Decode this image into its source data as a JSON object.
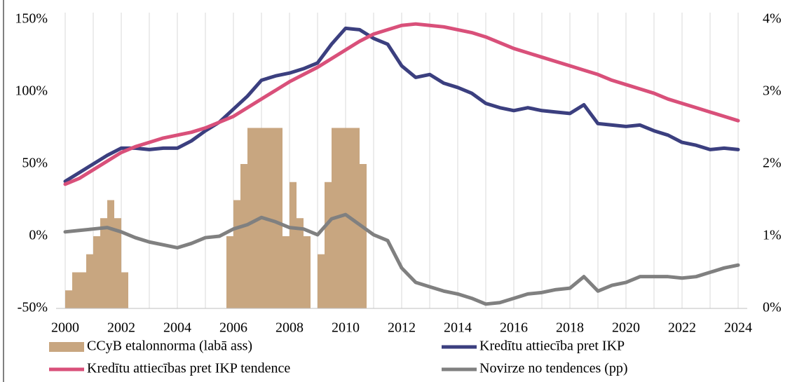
{
  "chart_data": {
    "type": "combo",
    "x": [
      2000,
      2000.5,
      2001,
      2001.5,
      2002,
      2002.5,
      2003,
      2003.5,
      2004,
      2004.5,
      2005,
      2005.5,
      2006,
      2006.5,
      2007,
      2007.5,
      2008,
      2008.5,
      2009,
      2009.5,
      2010,
      2010.5,
      2011,
      2011.5,
      2012,
      2012.5,
      2013,
      2013.5,
      2014,
      2014.5,
      2015,
      2015.5,
      2016,
      2016.5,
      2017,
      2017.5,
      2018,
      2018.5,
      2019,
      2019.5,
      2020,
      2020.5,
      2021,
      2021.5,
      2022,
      2022.5,
      2023,
      2023.5,
      2024
    ],
    "series": [
      {
        "name": "CCyB etalonnorma (labā ass)",
        "type": "bar",
        "axis": "y2",
        "color": "#c8a680",
        "x": [
          2000,
          2000.25,
          2000.5,
          2000.75,
          2001,
          2001.25,
          2001.5,
          2001.75,
          2002,
          2002.25,
          2002.5,
          2002.75,
          2003,
          2003.25,
          2003.5,
          2003.75,
          2004,
          2004.25,
          2004.5,
          2004.75,
          2005,
          2005.25,
          2005.5,
          2005.75,
          2006,
          2006.25,
          2006.5,
          2006.75,
          2007,
          2007.25,
          2007.5,
          2007.75,
          2008,
          2008.25,
          2008.5,
          2008.75,
          2009,
          2009.25,
          2009.5,
          2009.75,
          2010,
          2010.25,
          2010.5
        ],
        "values": [
          0.25,
          0.5,
          0.5,
          0.75,
          1.0,
          1.25,
          1.5,
          1.25,
          0.5,
          0,
          0,
          0,
          0,
          0,
          0,
          0,
          0,
          0,
          0,
          0,
          0,
          0,
          0,
          1.0,
          1.5,
          2.0,
          2.5,
          2.5,
          2.5,
          2.5,
          2.5,
          1.0,
          1.75,
          1.25,
          1.0,
          0,
          0.75,
          1.75,
          2.5,
          2.5,
          2.5,
          2.5,
          2.0
        ]
      },
      {
        "name": "Kredītu attiecība pret IKP",
        "type": "line",
        "color": "#3b3f7f",
        "values": [
          38,
          44,
          50,
          56,
          61,
          61,
          60,
          61,
          61,
          66,
          73,
          79,
          88,
          97,
          108,
          111,
          113,
          116,
          120,
          133,
          144,
          143,
          137,
          133,
          118,
          110,
          112,
          106,
          103,
          99,
          92,
          89,
          87,
          89,
          87,
          86,
          85,
          91,
          78,
          77,
          76,
          77,
          73,
          70,
          65,
          63,
          60,
          61,
          60
        ]
      },
      {
        "name": "Kredītu attiecības pret IKP tendence",
        "type": "line",
        "color": "#d9507a",
        "values": [
          36,
          40,
          46,
          52,
          58,
          62,
          65,
          68,
          70,
          72,
          75,
          79,
          83,
          89,
          95,
          101,
          107,
          112,
          117,
          123,
          129,
          135,
          140,
          143,
          146,
          147,
          146,
          145,
          143,
          141,
          138,
          134,
          130,
          127,
          124,
          121,
          118,
          115,
          112,
          108,
          105,
          102,
          99,
          95,
          92,
          89,
          86,
          83,
          80
        ]
      },
      {
        "name": "Novirze no tendences (pp)",
        "type": "line",
        "color": "#808080",
        "values": [
          3,
          4,
          5,
          6,
          3,
          -1,
          -4,
          -6,
          -8,
          -5,
          -1,
          0,
          5,
          8,
          13,
          10,
          6,
          5,
          1,
          12,
          15,
          8,
          1,
          -3,
          -22,
          -32,
          -35,
          -38,
          -40,
          -43,
          -47,
          -46,
          -43,
          -40,
          -39,
          -37,
          -36,
          -28,
          -38,
          -34,
          -32,
          -28,
          -28,
          -28,
          -29,
          -28,
          -25,
          -22,
          -20
        ]
      }
    ],
    "xlim": [
      2000,
      2024
    ],
    "xticks": [
      2000,
      2002,
      2004,
      2006,
      2008,
      2010,
      2012,
      2014,
      2016,
      2018,
      2020,
      2022,
      2024
    ],
    "ylim": [
      -50,
      150
    ],
    "yticks": [
      {
        "value": -50,
        "label": "-50%"
      },
      {
        "value": 0,
        "label": "0%"
      },
      {
        "value": 50,
        "label": "50%"
      },
      {
        "value": 100,
        "label": "100%"
      },
      {
        "value": 150,
        "label": "150%"
      }
    ],
    "y2lim": [
      0,
      4
    ],
    "y2ticks": [
      {
        "value": 0,
        "label": "0%"
      },
      {
        "value": 1,
        "label": "1%"
      },
      {
        "value": 2,
        "label": "2%"
      },
      {
        "value": 3,
        "label": "3%"
      },
      {
        "value": 4,
        "label": "4%"
      }
    ],
    "grid": true
  }
}
